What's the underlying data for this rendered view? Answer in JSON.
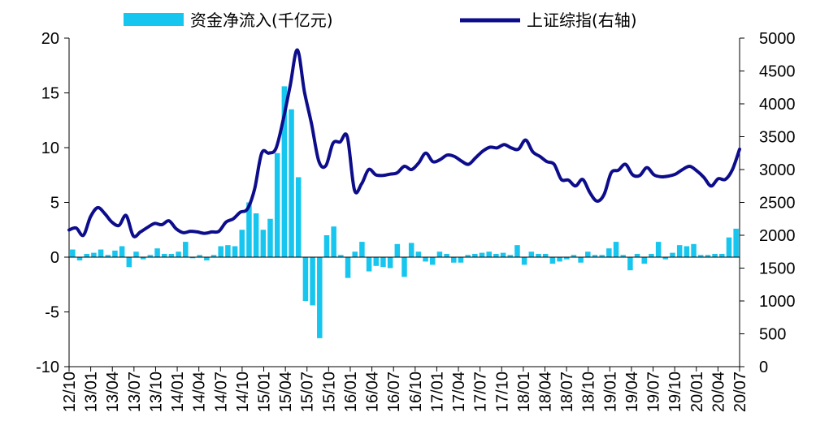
{
  "chart_data": {
    "type": "bar+line",
    "title": "",
    "legend": [
      {
        "name": "资金净流入(千亿元)",
        "marker": "bar",
        "color": "#17c6ee"
      },
      {
        "name": "上证综指(右轴)",
        "marker": "line",
        "color": "#0d0d8c"
      }
    ],
    "legend_position": "top",
    "xlabel": "",
    "ylabel_left": "",
    "ylabel_right": "",
    "left_axis": {
      "min": -10,
      "max": 20,
      "ticks": [
        20,
        15,
        10,
        5,
        0,
        -5,
        -10
      ]
    },
    "right_axis": {
      "min": 0,
      "max": 5000,
      "ticks": [
        5000,
        4500,
        4000,
        3500,
        3000,
        2500,
        2000,
        1500,
        1000,
        500,
        0
      ]
    },
    "x_tick_labels": [
      "12/10",
      "13/01",
      "13/04",
      "13/07",
      "13/10",
      "14/01",
      "14/04",
      "14/07",
      "14/10",
      "15/01",
      "15/04",
      "15/07",
      "15/10",
      "16/01",
      "16/04",
      "16/07",
      "16/10",
      "17/01",
      "17/04",
      "17/07",
      "17/10",
      "18/01",
      "18/04",
      "18/07",
      "18/10",
      "19/01",
      "19/04",
      "19/07",
      "19/10",
      "20/01",
      "20/04",
      "20/07"
    ],
    "grid": false,
    "series": [
      {
        "name": "资金净流入(千亿元)",
        "type": "bar",
        "axis": "left",
        "values": [
          0.7,
          -0.3,
          0.3,
          0.4,
          0.7,
          0.2,
          0.6,
          1.0,
          -0.9,
          0.5,
          -0.2,
          0.2,
          0.8,
          0.3,
          0.3,
          0.5,
          1.4,
          -0.1,
          0.2,
          -0.3,
          0.2,
          1.0,
          1.1,
          1.0,
          2.5,
          5.0,
          4.0,
          2.5,
          3.5,
          9.5,
          15.6,
          13.5,
          7.3,
          -4.0,
          -4.4,
          -7.4,
          2.0,
          2.8,
          0.2,
          -1.9,
          0.5,
          1.4,
          -1.3,
          -0.8,
          -0.9,
          -1.0,
          1.2,
          -1.8,
          1.3,
          0.5,
          -0.4,
          -0.7,
          0.5,
          0.3,
          -0.5,
          -0.5,
          0.2,
          0.3,
          0.4,
          0.5,
          0.3,
          0.4,
          0.2,
          1.1,
          -0.7,
          0.5,
          0.3,
          0.3,
          -0.6,
          -0.4,
          -0.2,
          0.2,
          -0.5,
          0.5,
          0.2,
          0.2,
          0.8,
          1.4,
          0.2,
          -1.2,
          0.3,
          -0.6,
          0.3,
          1.4,
          -0.2,
          0.4,
          1.1,
          1.0,
          1.2,
          0.2,
          0.2,
          0.3,
          0.3,
          1.8,
          2.6
        ]
      },
      {
        "name": "上证综指(右轴)",
        "type": "line",
        "axis": "right",
        "values": [
          2080,
          2110,
          2000,
          2280,
          2420,
          2330,
          2200,
          2150,
          2300,
          1990,
          2050,
          2120,
          2180,
          2160,
          2220,
          2100,
          2040,
          2060,
          2050,
          2030,
          2050,
          2060,
          2200,
          2250,
          2350,
          2400,
          2700,
          3250,
          3250,
          3320,
          3750,
          4280,
          4820,
          4180,
          3690,
          3130,
          3060,
          3400,
          3420,
          3500,
          2690,
          2780,
          3000,
          2920,
          2910,
          2930,
          2950,
          3050,
          3000,
          3100,
          3250,
          3120,
          3150,
          3220,
          3200,
          3130,
          3080,
          3180,
          3280,
          3340,
          3330,
          3380,
          3330,
          3310,
          3450,
          3270,
          3200,
          3120,
          3080,
          2850,
          2840,
          2750,
          2850,
          2650,
          2520,
          2620,
          2950,
          2990,
          3080,
          2920,
          2910,
          3030,
          2920,
          2890,
          2900,
          2930,
          3000,
          3050,
          2980,
          2880,
          2750,
          2860,
          2850,
          3000,
          3310
        ]
      }
    ]
  }
}
